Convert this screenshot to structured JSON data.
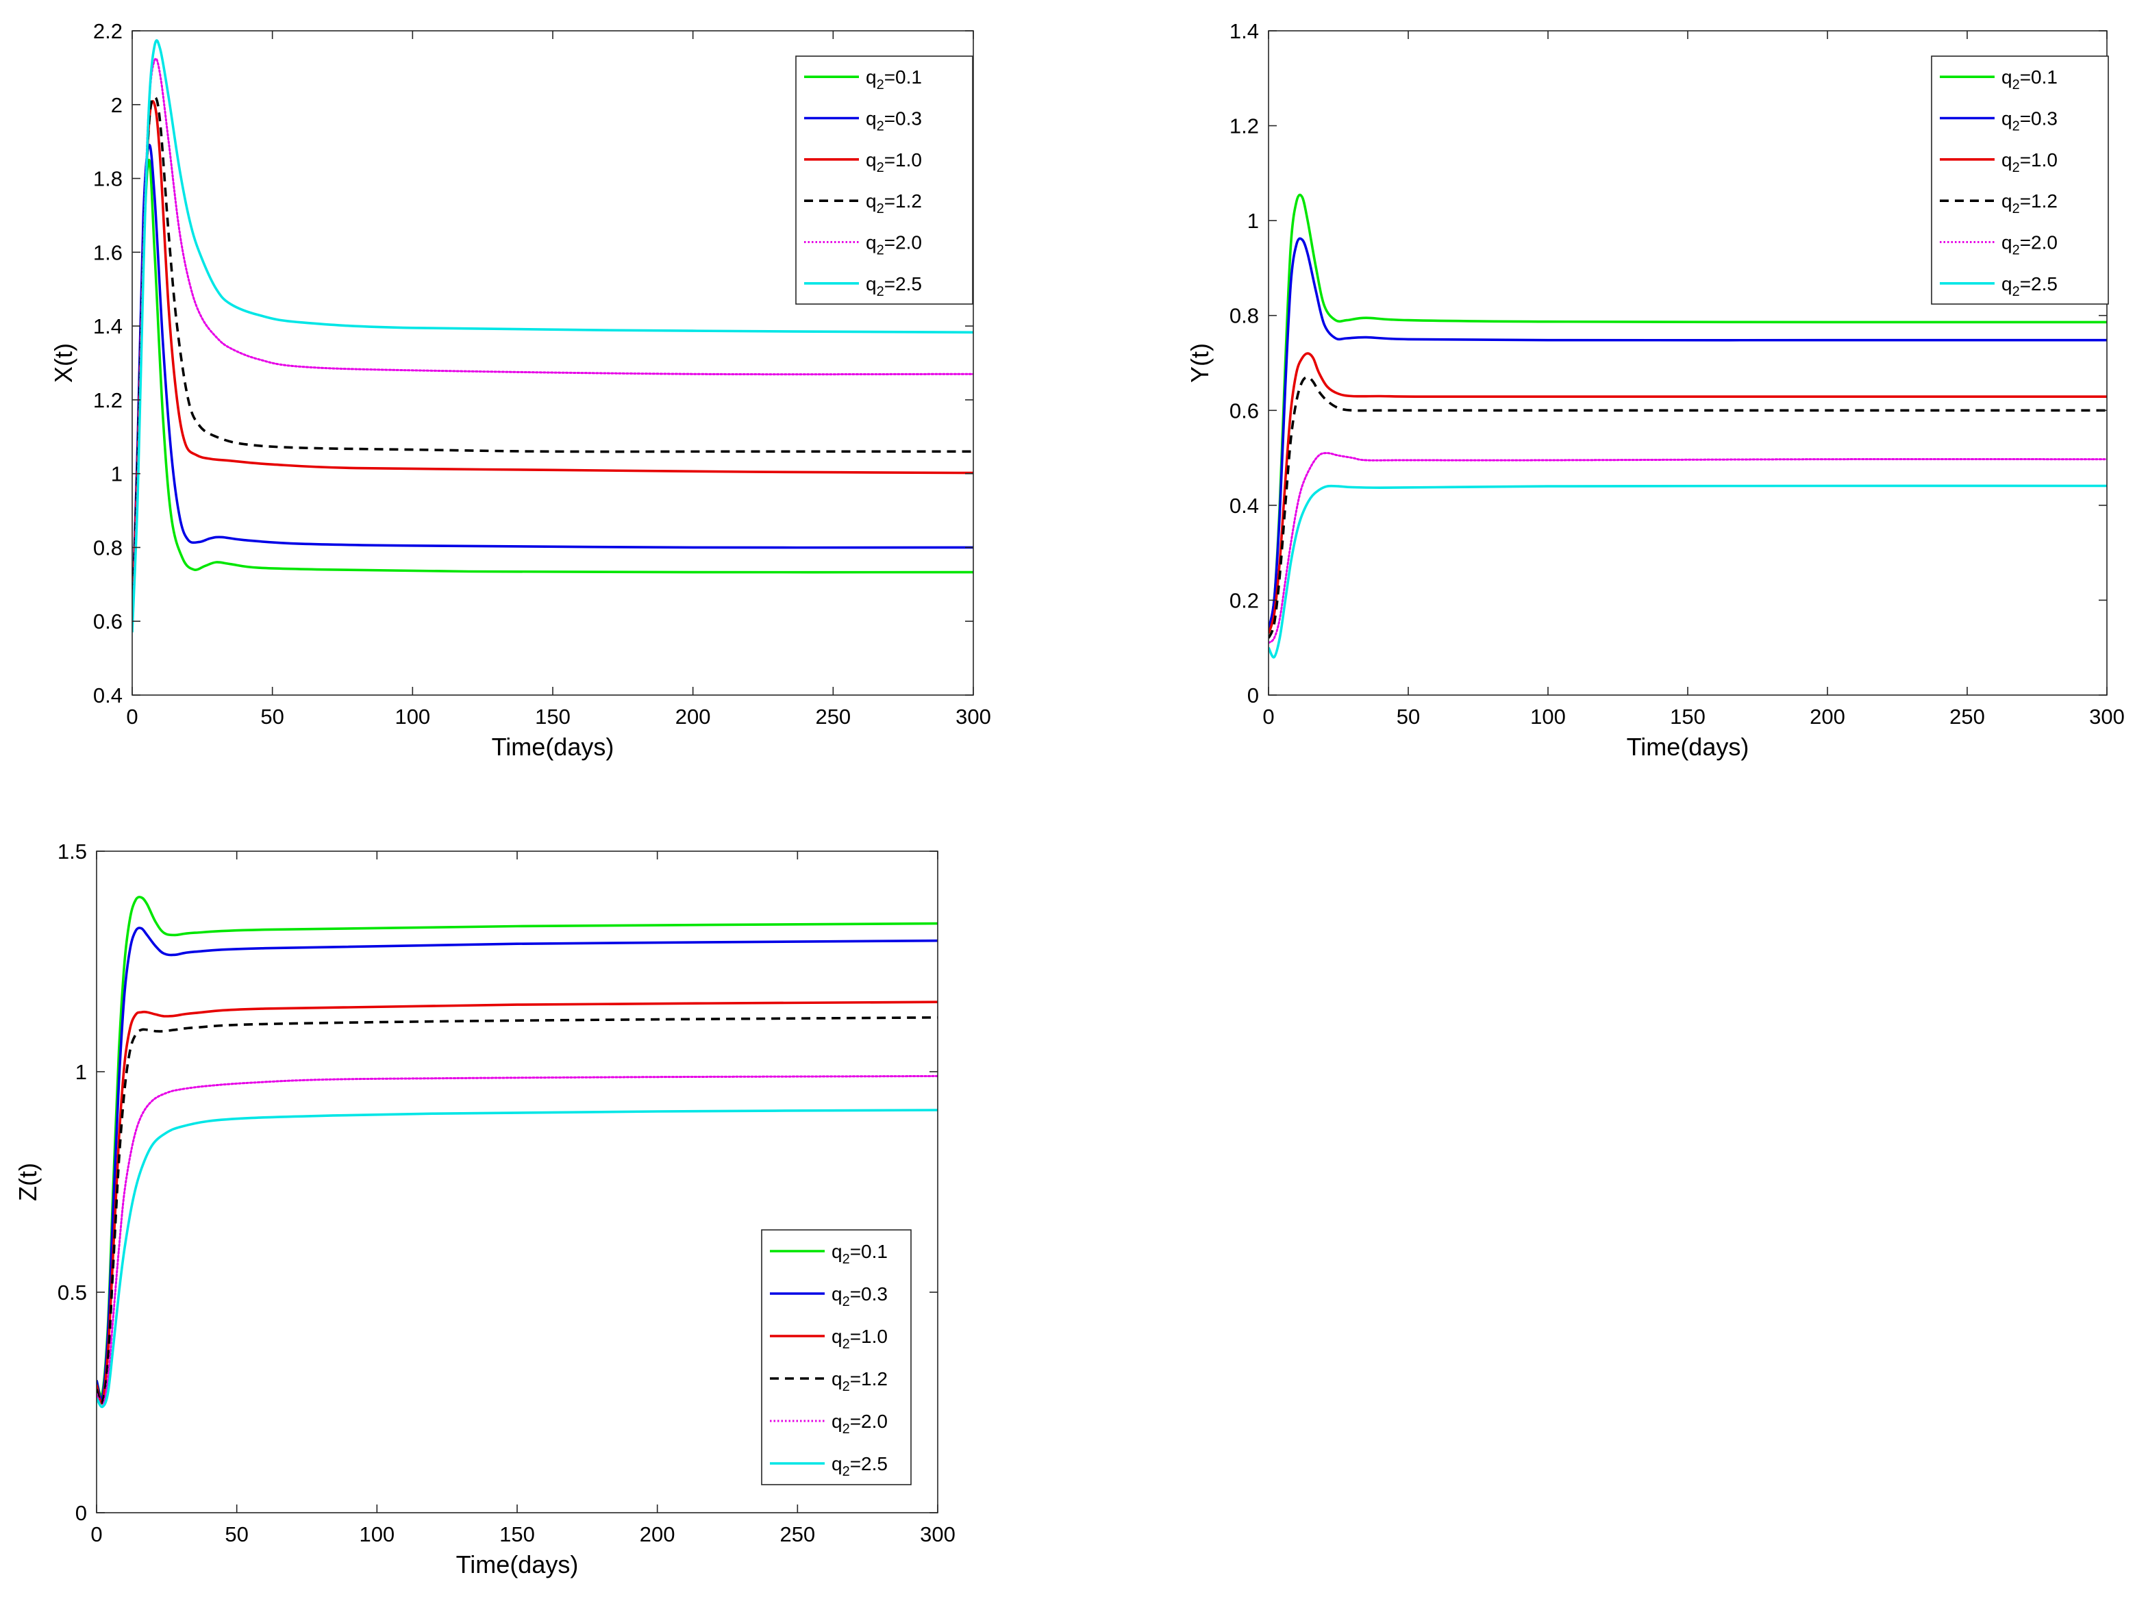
{
  "chart_data": [
    {
      "type": "line",
      "id": "x",
      "xlabel": "Time(days)",
      "ylabel": "X(t)",
      "xlim": [
        0,
        300
      ],
      "ylim": [
        0.4,
        2.2
      ],
      "xticks": [
        0,
        50,
        100,
        150,
        200,
        250,
        300
      ],
      "yticks": [
        0.4,
        0.6,
        0.8,
        1,
        1.2,
        1.4,
        1.6,
        1.8,
        2,
        2.2
      ],
      "ytick_labels": [
        "0.4",
        "0.6",
        "0.8",
        "1",
        "1.2",
        "1.4",
        "1.6",
        "1.8",
        "2",
        "2.2"
      ],
      "legend_position": "top-right",
      "series": [
        {
          "name": "q",
          "sub": "2",
          "value_text": "=0.1",
          "color": "#00e600",
          "dash": "solid",
          "x": [
            0,
            2,
            4,
            6,
            8,
            11,
            14,
            18,
            22,
            26,
            30,
            35,
            45,
            70,
            120,
            200,
            300
          ],
          "y": [
            0.6,
            1.05,
            1.6,
            1.85,
            1.6,
            1.15,
            0.88,
            0.77,
            0.74,
            0.75,
            0.76,
            0.755,
            0.745,
            0.74,
            0.735,
            0.733,
            0.733
          ]
        },
        {
          "name": "q",
          "sub": "2",
          "value_text": "=0.3",
          "color": "#0000e6",
          "dash": "solid",
          "x": [
            0,
            2,
            4,
            6,
            8,
            11,
            14,
            17,
            20,
            24,
            28,
            32,
            40,
            60,
            100,
            200,
            300
          ],
          "y": [
            0.6,
            1.1,
            1.7,
            1.89,
            1.75,
            1.35,
            1.05,
            0.88,
            0.82,
            0.815,
            0.825,
            0.828,
            0.82,
            0.81,
            0.805,
            0.8,
            0.8
          ]
        },
        {
          "name": "q",
          "sub": "2",
          "value_text": "=1.0",
          "color": "#e60000",
          "dash": "solid",
          "x": [
            0,
            2,
            4,
            6,
            8,
            10,
            13,
            16,
            19,
            23,
            28,
            35,
            50,
            80,
            150,
            220,
            300
          ],
          "y": [
            0.6,
            1.05,
            1.6,
            1.95,
            2.0,
            1.85,
            1.45,
            1.2,
            1.08,
            1.05,
            1.04,
            1.035,
            1.025,
            1.015,
            1.01,
            1.005,
            1.002
          ]
        },
        {
          "name": "q",
          "sub": "2",
          "value_text": "=1.2",
          "color": "#000000",
          "dash": "dashed",
          "x": [
            0,
            2,
            4,
            6,
            8,
            10,
            13,
            16,
            20,
            24,
            30,
            40,
            60,
            100,
            150,
            220,
            300
          ],
          "y": [
            0.6,
            1.05,
            1.6,
            1.95,
            2.02,
            1.95,
            1.65,
            1.4,
            1.2,
            1.13,
            1.1,
            1.08,
            1.07,
            1.065,
            1.06,
            1.06,
            1.06
          ]
        },
        {
          "name": "q",
          "sub": "2",
          "value_text": "=2.0",
          "color": "#e600e6",
          "dash": "dotted",
          "x": [
            0,
            2,
            4,
            6,
            8,
            10,
            13,
            17,
            21,
            25,
            30,
            35,
            45,
            60,
            100,
            200,
            300
          ],
          "y": [
            0.58,
            1.0,
            1.6,
            2.0,
            2.12,
            2.08,
            1.9,
            1.65,
            1.5,
            1.42,
            1.37,
            1.34,
            1.31,
            1.29,
            1.28,
            1.27,
            1.27
          ]
        },
        {
          "name": "q",
          "sub": "2",
          "value_text": "=2.5",
          "color": "#00e6e6",
          "dash": "solid",
          "x": [
            0,
            2,
            4,
            6,
            8,
            10,
            13,
            17,
            21,
            25,
            30,
            35,
            45,
            60,
            100,
            200,
            300
          ],
          "y": [
            0.57,
            0.95,
            1.55,
            2.0,
            2.16,
            2.15,
            2.02,
            1.82,
            1.67,
            1.58,
            1.5,
            1.46,
            1.43,
            1.41,
            1.395,
            1.387,
            1.383
          ]
        }
      ]
    },
    {
      "type": "line",
      "id": "y",
      "xlabel": "Time(days)",
      "ylabel": "Y(t)",
      "xlim": [
        0,
        300
      ],
      "ylim": [
        0,
        1.4
      ],
      "xticks": [
        0,
        50,
        100,
        150,
        200,
        250,
        300
      ],
      "yticks": [
        0,
        0.2,
        0.4,
        0.6,
        0.8,
        1,
        1.2,
        1.4
      ],
      "ytick_labels": [
        "0",
        "0.2",
        "0.4",
        "0.6",
        "0.8",
        "1",
        "1.2",
        "1.4"
      ],
      "legend_position": "top-right",
      "series": [
        {
          "name": "q",
          "sub": "2",
          "value_text": "=0.1",
          "color": "#00e600",
          "dash": "solid",
          "x": [
            0,
            2,
            4,
            6,
            8,
            10,
            12,
            14,
            17,
            20,
            24,
            28,
            35,
            50,
            100,
            200,
            300
          ],
          "y": [
            0.14,
            0.2,
            0.4,
            0.7,
            0.95,
            1.04,
            1.05,
            1.0,
            0.9,
            0.82,
            0.79,
            0.79,
            0.795,
            0.79,
            0.787,
            0.786,
            0.786
          ]
        },
        {
          "name": "q",
          "sub": "2",
          "value_text": "=0.3",
          "color": "#0000e6",
          "dash": "solid",
          "x": [
            0,
            2,
            4,
            6,
            8,
            10,
            12,
            14,
            17,
            20,
            24,
            28,
            35,
            50,
            100,
            200,
            300
          ],
          "y": [
            0.14,
            0.2,
            0.38,
            0.65,
            0.87,
            0.95,
            0.96,
            0.93,
            0.85,
            0.78,
            0.752,
            0.752,
            0.754,
            0.75,
            0.748,
            0.748,
            0.748
          ]
        },
        {
          "name": "q",
          "sub": "2",
          "value_text": "=1.0",
          "color": "#e60000",
          "dash": "solid",
          "x": [
            0,
            2,
            4,
            6,
            8,
            10,
            12,
            14,
            16,
            18,
            21,
            25,
            30,
            40,
            60,
            150,
            300
          ],
          "y": [
            0.13,
            0.17,
            0.28,
            0.45,
            0.6,
            0.68,
            0.71,
            0.72,
            0.71,
            0.68,
            0.65,
            0.635,
            0.63,
            0.63,
            0.629,
            0.629,
            0.629
          ]
        },
        {
          "name": "q",
          "sub": "2",
          "value_text": "=1.2",
          "color": "#000000",
          "dash": "dashed",
          "x": [
            0,
            2,
            4,
            6,
            8,
            10,
            12,
            14,
            16,
            18,
            21,
            25,
            30,
            40,
            60,
            150,
            300
          ],
          "y": [
            0.12,
            0.15,
            0.25,
            0.4,
            0.54,
            0.62,
            0.66,
            0.67,
            0.66,
            0.64,
            0.62,
            0.605,
            0.6,
            0.6,
            0.6,
            0.6,
            0.6
          ]
        },
        {
          "name": "q",
          "sub": "2",
          "value_text": "=2.0",
          "color": "#e600e6",
          "dash": "dotted",
          "x": [
            0,
            2,
            4,
            6,
            8,
            10,
            12,
            15,
            18,
            21,
            25,
            30,
            35,
            50,
            100,
            200,
            300
          ],
          "y": [
            0.11,
            0.12,
            0.16,
            0.24,
            0.32,
            0.39,
            0.44,
            0.48,
            0.505,
            0.51,
            0.505,
            0.5,
            0.495,
            0.495,
            0.495,
            0.497,
            0.497
          ]
        },
        {
          "name": "q",
          "sub": "2",
          "value_text": "=2.5",
          "color": "#00e6e6",
          "dash": "solid",
          "x": [
            0,
            2,
            4,
            6,
            8,
            10,
            12,
            15,
            18,
            21,
            25,
            30,
            40,
            60,
            100,
            200,
            300
          ],
          "y": [
            0.1,
            0.08,
            0.12,
            0.2,
            0.28,
            0.34,
            0.38,
            0.415,
            0.432,
            0.44,
            0.44,
            0.438,
            0.437,
            0.438,
            0.44,
            0.441,
            0.441
          ]
        }
      ]
    },
    {
      "type": "line",
      "id": "z",
      "xlabel": "Time(days)",
      "ylabel": "Z(t)",
      "xlim": [
        0,
        300
      ],
      "ylim": [
        0,
        1.5
      ],
      "xticks": [
        0,
        50,
        100,
        150,
        200,
        250,
        300
      ],
      "yticks": [
        0,
        0.5,
        1,
        1.5
      ],
      "ytick_labels": [
        "0",
        "0.5",
        "1",
        "1.5"
      ],
      "legend_position": "bottom-right",
      "series": [
        {
          "name": "q",
          "sub": "2",
          "value_text": "=0.1",
          "color": "#00e600",
          "dash": "solid",
          "x": [
            0,
            2,
            4,
            6,
            8,
            10,
            12,
            14,
            16,
            18,
            21,
            24,
            28,
            35,
            60,
            150,
            300
          ],
          "y": [
            0.3,
            0.27,
            0.42,
            0.75,
            1.05,
            1.25,
            1.35,
            1.39,
            1.395,
            1.38,
            1.34,
            1.315,
            1.31,
            1.315,
            1.322,
            1.33,
            1.336
          ]
        },
        {
          "name": "q",
          "sub": "2",
          "value_text": "=0.3",
          "color": "#0000e6",
          "dash": "solid",
          "x": [
            0,
            2,
            4,
            6,
            8,
            10,
            12,
            14,
            16,
            18,
            21,
            24,
            28,
            35,
            60,
            150,
            300
          ],
          "y": [
            0.3,
            0.26,
            0.4,
            0.7,
            0.98,
            1.18,
            1.28,
            1.32,
            1.325,
            1.31,
            1.285,
            1.268,
            1.265,
            1.272,
            1.28,
            1.29,
            1.297
          ]
        },
        {
          "name": "q",
          "sub": "2",
          "value_text": "=1.0",
          "color": "#e60000",
          "dash": "solid",
          "x": [
            0,
            2,
            4,
            6,
            8,
            10,
            12,
            14,
            16,
            18,
            21,
            24,
            28,
            35,
            60,
            150,
            300
          ],
          "y": [
            0.29,
            0.25,
            0.36,
            0.6,
            0.85,
            1.02,
            1.1,
            1.13,
            1.135,
            1.135,
            1.13,
            1.126,
            1.127,
            1.133,
            1.143,
            1.152,
            1.158
          ]
        },
        {
          "name": "q",
          "sub": "2",
          "value_text": "=1.2",
          "color": "#000000",
          "dash": "dashed",
          "x": [
            0,
            2,
            4,
            6,
            8,
            10,
            12,
            14,
            16,
            18,
            21,
            24,
            28,
            35,
            60,
            150,
            300
          ],
          "y": [
            0.28,
            0.25,
            0.34,
            0.57,
            0.8,
            0.96,
            1.05,
            1.085,
            1.095,
            1.095,
            1.092,
            1.092,
            1.095,
            1.1,
            1.108,
            1.116,
            1.123
          ]
        },
        {
          "name": "q",
          "sub": "2",
          "value_text": "=2.0",
          "color": "#e600e6",
          "dash": "dotted",
          "x": [
            0,
            2,
            4,
            6,
            8,
            10,
            13,
            16,
            20,
            25,
            30,
            40,
            55,
            80,
            120,
            200,
            300
          ],
          "y": [
            0.27,
            0.24,
            0.3,
            0.45,
            0.6,
            0.73,
            0.84,
            0.9,
            0.935,
            0.952,
            0.96,
            0.968,
            0.975,
            0.982,
            0.985,
            0.988,
            0.99
          ]
        },
        {
          "name": "q",
          "sub": "2",
          "value_text": "=2.5",
          "color": "#00e6e6",
          "dash": "solid",
          "x": [
            0,
            2,
            4,
            6,
            8,
            10,
            13,
            16,
            20,
            25,
            30,
            40,
            55,
            80,
            120,
            200,
            300
          ],
          "y": [
            0.26,
            0.24,
            0.27,
            0.38,
            0.5,
            0.6,
            0.71,
            0.78,
            0.835,
            0.862,
            0.875,
            0.888,
            0.895,
            0.9,
            0.905,
            0.91,
            0.913
          ]
        }
      ]
    }
  ]
}
